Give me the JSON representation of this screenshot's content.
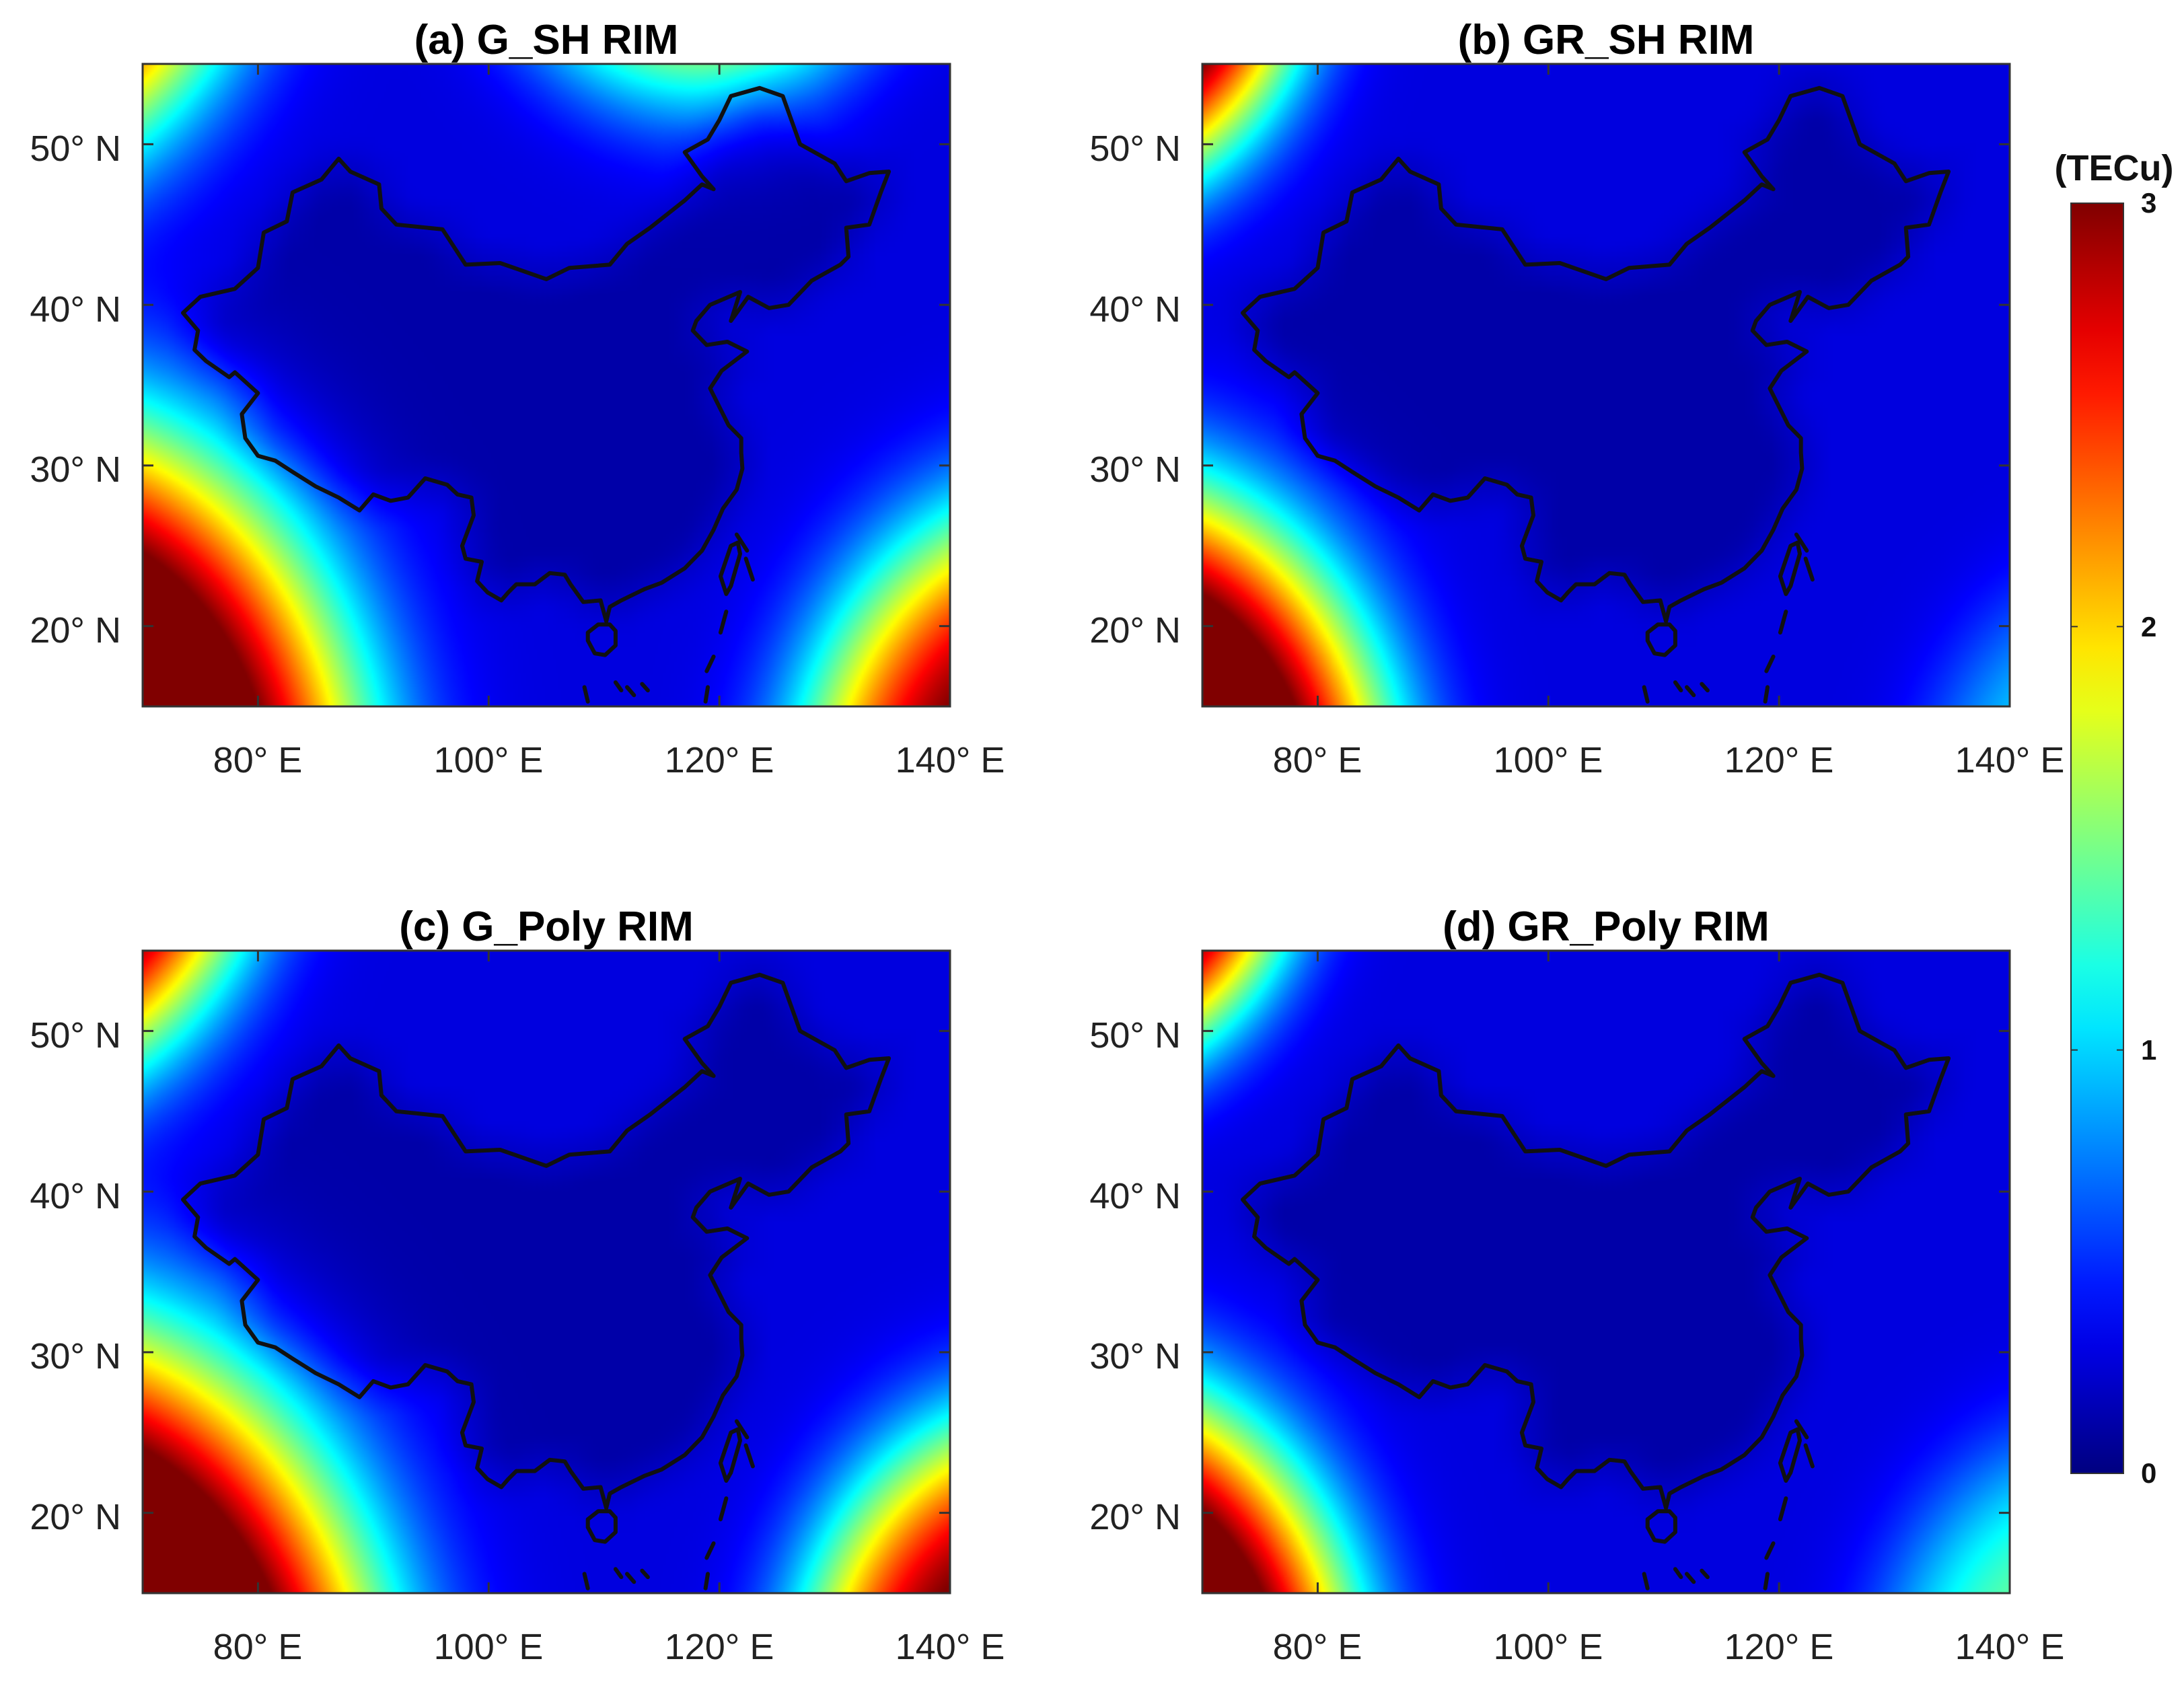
{
  "panels": [
    {
      "id": "a",
      "title": "(a) G_SH RIM",
      "anomaly_sources": [
        {
          "lon": 55,
          "lat": 70,
          "peak": 3.0,
          "radius_deg": 26
        },
        {
          "lon": 60,
          "lat": 8,
          "peak": 3.0,
          "radius_deg": 30
        },
        {
          "lon": 150,
          "lat": 8,
          "peak": 2.4,
          "radius_deg": 24
        },
        {
          "lon": 118,
          "lat": 70,
          "peak": 1.8,
          "radius_deg": 20
        }
      ]
    },
    {
      "id": "b",
      "title": "(b) GR_SH RIM",
      "anomaly_sources": [
        {
          "lon": 60,
          "lat": 64,
          "peak": 3.0,
          "radius_deg": 20
        },
        {
          "lon": 62,
          "lat": 8,
          "peak": 3.0,
          "radius_deg": 25
        },
        {
          "lon": 150,
          "lat": 8,
          "peak": 0.7,
          "radius_deg": 18
        }
      ]
    },
    {
      "id": "c",
      "title": "(c) G_Poly RIM",
      "anomaly_sources": [
        {
          "lon": 58,
          "lat": 66,
          "peak": 3.0,
          "radius_deg": 23
        },
        {
          "lon": 60,
          "lat": 5,
          "peak": 3.2,
          "radius_deg": 32
        },
        {
          "lon": 148,
          "lat": 8,
          "peak": 2.4,
          "radius_deg": 22
        }
      ]
    },
    {
      "id": "d",
      "title": "(d) GR_Poly RIM",
      "anomaly_sources": [
        {
          "lon": 60,
          "lat": 64,
          "peak": 3.0,
          "radius_deg": 19
        },
        {
          "lon": 60,
          "lat": 8,
          "peak": 3.0,
          "radius_deg": 24
        },
        {
          "lon": 148,
          "lat": 8,
          "peak": 1.0,
          "radius_deg": 20
        }
      ]
    }
  ],
  "map": {
    "lon_range": [
      70,
      140
    ],
    "lat_range": [
      15,
      55
    ],
    "x_ticks": [
      80,
      100,
      120,
      140
    ],
    "y_ticks": [
      20,
      30,
      40,
      50
    ],
    "x_tick_labels": [
      "80° E",
      "100° E",
      "120° E",
      "140° E"
    ],
    "y_tick_labels": [
      "20° N",
      "30° N",
      "40° N",
      "50° N"
    ],
    "background_tec": 0.28,
    "inner_tec": 0.12,
    "china_outline": [
      [
        73.5,
        39.5
      ],
      [
        75,
        40.5
      ],
      [
        78,
        41
      ],
      [
        80,
        42.3
      ],
      [
        80.5,
        44.5
      ],
      [
        82.5,
        45.2
      ],
      [
        83,
        47
      ],
      [
        85.5,
        47.8
      ],
      [
        87,
        49.1
      ],
      [
        88,
        48.3
      ],
      [
        90.5,
        47.5
      ],
      [
        90.7,
        46
      ],
      [
        92,
        45
      ],
      [
        96,
        44.7
      ],
      [
        98,
        42.5
      ],
      [
        101,
        42.6
      ],
      [
        105,
        41.6
      ],
      [
        107,
        42.3
      ],
      [
        110.5,
        42.5
      ],
      [
        112,
        43.8
      ],
      [
        114,
        44.8
      ],
      [
        117,
        46.5
      ],
      [
        118.5,
        47.5
      ],
      [
        119.5,
        47.2
      ],
      [
        118.5,
        48
      ],
      [
        117,
        49.5
      ],
      [
        119,
        50.3
      ],
      [
        120,
        51.5
      ],
      [
        121,
        53
      ],
      [
        123.5,
        53.5
      ],
      [
        125.5,
        53
      ],
      [
        127,
        50
      ],
      [
        130,
        48.8
      ],
      [
        131,
        47.7
      ],
      [
        133,
        48.2
      ],
      [
        134.7,
        48.3
      ],
      [
        134,
        47
      ],
      [
        133,
        45
      ],
      [
        131,
        44.8
      ],
      [
        131.2,
        43
      ],
      [
        130.5,
        42.5
      ],
      [
        128,
        41.5
      ],
      [
        126,
        40
      ],
      [
        124.3,
        39.8
      ],
      [
        122.5,
        40.5
      ],
      [
        121,
        39
      ],
      [
        121.8,
        40.8
      ],
      [
        119.2,
        40
      ],
      [
        118,
        39
      ],
      [
        117.7,
        38.4
      ],
      [
        118.9,
        37.5
      ],
      [
        120.7,
        37.7
      ],
      [
        122.4,
        37.1
      ],
      [
        120.2,
        35.9
      ],
      [
        119.2,
        34.8
      ],
      [
        120.8,
        32.5
      ],
      [
        121.9,
        31.7
      ],
      [
        121.9,
        30.8
      ],
      [
        122,
        29.8
      ],
      [
        121.5,
        28.5
      ],
      [
        120.3,
        27.3
      ],
      [
        119.5,
        26
      ],
      [
        118.5,
        24.7
      ],
      [
        117,
        23.6
      ],
      [
        115,
        22.7
      ],
      [
        113.5,
        22.3
      ],
      [
        111.5,
        21.6
      ],
      [
        110.5,
        21.2
      ],
      [
        110.2,
        20.3
      ],
      [
        109.7,
        21.6
      ],
      [
        108.2,
        21.5
      ],
      [
        107.1,
        22.6
      ],
      [
        106.6,
        23.2
      ],
      [
        105.3,
        23.3
      ],
      [
        104,
        22.6
      ],
      [
        102.4,
        22.6
      ],
      [
        101.7,
        22.1
      ],
      [
        101.1,
        21.6
      ],
      [
        99.9,
        22.1
      ],
      [
        99,
        22.8
      ],
      [
        99.4,
        24
      ],
      [
        98,
        24.2
      ],
      [
        97.7,
        25
      ],
      [
        98.7,
        26.9
      ],
      [
        98.5,
        28
      ],
      [
        97.3,
        28.2
      ],
      [
        96.4,
        28.8
      ],
      [
        94.5,
        29.2
      ],
      [
        93,
        28
      ],
      [
        91.5,
        27.8
      ],
      [
        90,
        28.2
      ],
      [
        88.8,
        27.2
      ],
      [
        87,
        28
      ],
      [
        85,
        28.7
      ],
      [
        83,
        29.6
      ],
      [
        81.5,
        30.3
      ],
      [
        80,
        30.6
      ],
      [
        78.9,
        31.7
      ],
      [
        78.6,
        33.2
      ],
      [
        80,
        34.5
      ],
      [
        78,
        35.8
      ],
      [
        77.5,
        35.5
      ],
      [
        75.5,
        36.5
      ],
      [
        74.5,
        37.2
      ],
      [
        74.8,
        38.4
      ],
      [
        73.5,
        39.5
      ]
    ],
    "hainan_outline": [
      [
        108.6,
        19.1
      ],
      [
        109.2,
        18.3
      ],
      [
        110.1,
        18.2
      ],
      [
        111,
        18.8
      ],
      [
        111,
        19.7
      ],
      [
        110.5,
        20.1
      ],
      [
        109.5,
        20.1
      ],
      [
        108.6,
        19.6
      ],
      [
        108.6,
        19.1
      ]
    ],
    "taiwan_outline": [
      [
        120.1,
        23.1
      ],
      [
        120.6,
        22
      ],
      [
        121,
        22.5
      ],
      [
        121.8,
        24.5
      ],
      [
        121.6,
        25.2
      ],
      [
        121,
        25
      ],
      [
        120.1,
        23.1
      ]
    ],
    "island_segments": [
      [
        [
          122.3,
          24.2
        ],
        [
          122.9,
          22.9
        ]
      ],
      [
        [
          120.6,
          20.9
        ],
        [
          120.1,
          19.6
        ]
      ],
      [
        [
          119.5,
          18.1
        ],
        [
          118.9,
          17.2
        ]
      ],
      [
        [
          119,
          16.2
        ],
        [
          118.8,
          15.3
        ]
      ],
      [
        [
          111,
          16.5
        ],
        [
          111.5,
          16
        ]
      ],
      [
        [
          112,
          16.2
        ],
        [
          112.6,
          15.7
        ]
      ],
      [
        [
          113.3,
          16.4
        ],
        [
          113.8,
          16
        ]
      ],
      [
        [
          108.3,
          16.2
        ],
        [
          108.6,
          15.3
        ]
      ],
      [
        [
          121.5,
          25.7
        ],
        [
          122.4,
          24.7
        ]
      ]
    ]
  },
  "colorbar": {
    "title": "(TECu)",
    "min": 0,
    "max": 3,
    "ticks": [
      "0",
      "1",
      "2",
      "3"
    ],
    "tick_values": [
      0,
      1,
      2,
      3
    ],
    "colormap": "jet"
  }
}
